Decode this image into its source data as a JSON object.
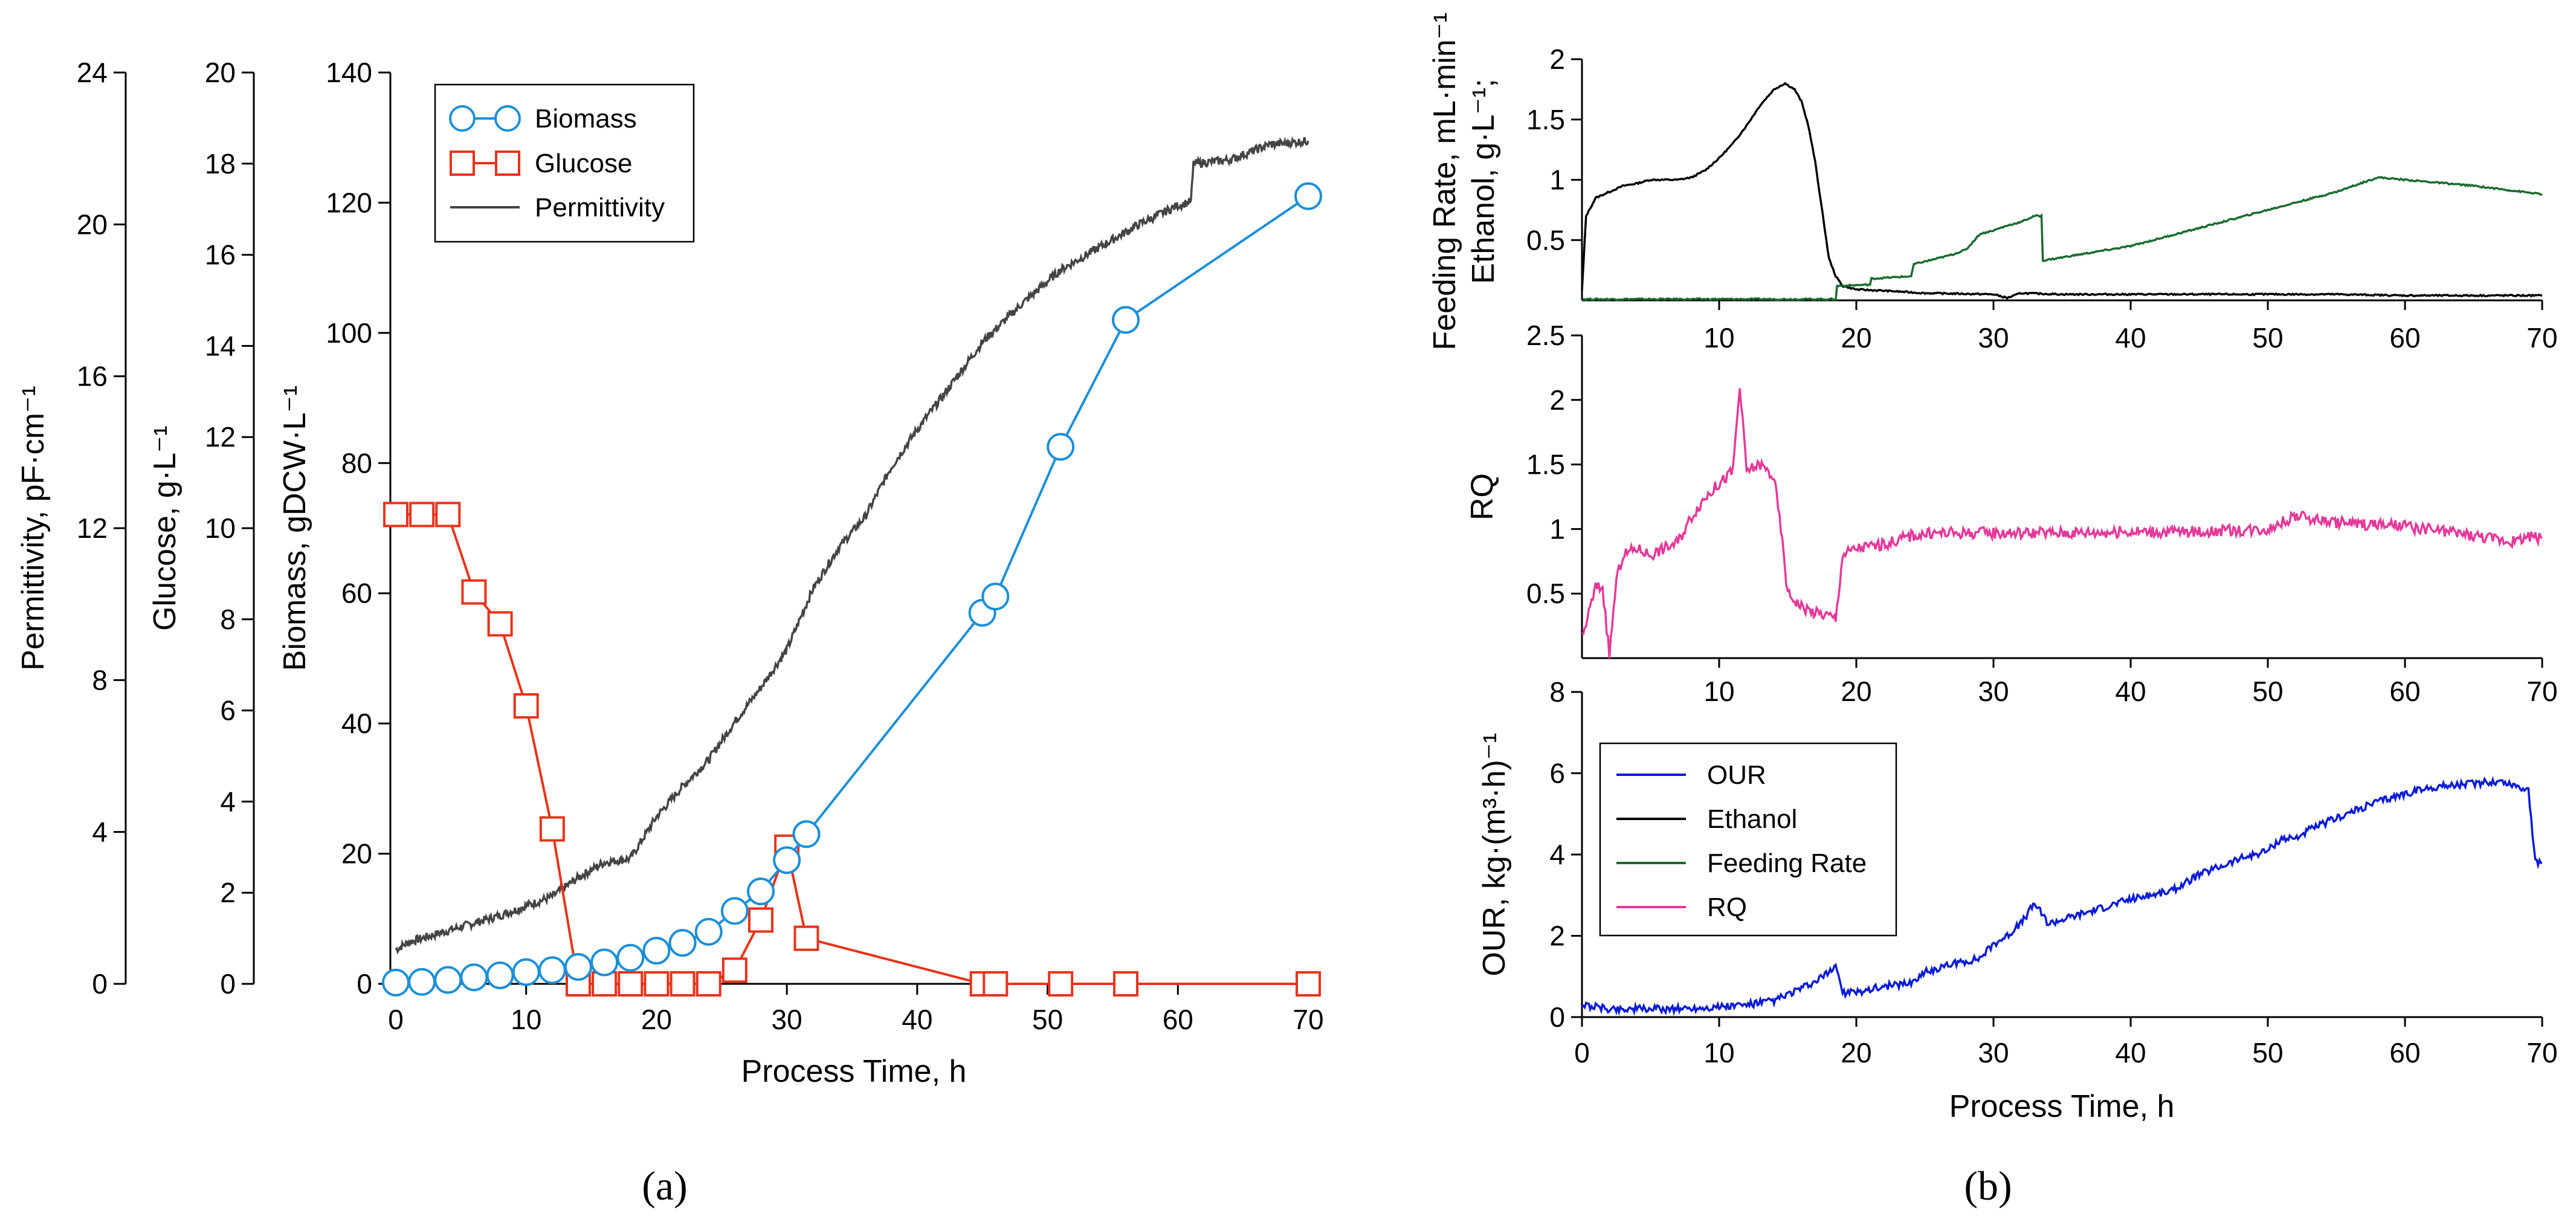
{
  "panels": {
    "a": {
      "label": "(a)"
    },
    "b": {
      "label": "(b)"
    }
  },
  "colors": {
    "biomass": "#1b8fd8",
    "glucose": "#e8331a",
    "permittivity": "#444444",
    "our": "#0a1bd6",
    "ethanol": "#000000",
    "feeding": "#1a6b2d",
    "rq": "#e5399a"
  },
  "chart_data": [
    {
      "type": "line",
      "panel": "a",
      "xlabel": "Process Time, h",
      "xlim": [
        0,
        70
      ],
      "x_ticks": [
        0,
        10,
        20,
        30,
        40,
        50,
        60,
        70
      ],
      "axes": [
        {
          "id": "biomass",
          "label": "Biomass, gDCW·L⁻¹",
          "ylim": [
            0,
            140
          ],
          "ticks": [
            0,
            20,
            40,
            60,
            80,
            100,
            120,
            140
          ]
        },
        {
          "id": "glucose",
          "label": "Glucose, g·L⁻¹",
          "ylim": [
            0,
            20
          ],
          "ticks": [
            0,
            2,
            4,
            6,
            8,
            10,
            12,
            14,
            16,
            18,
            20
          ]
        },
        {
          "id": "permittivity",
          "label": "Permittivity, pF·cm⁻¹",
          "ylim": [
            0,
            24
          ],
          "ticks": [
            0,
            4,
            8,
            12,
            16,
            20,
            24
          ]
        }
      ],
      "legend": {
        "position": "top-left",
        "entries": [
          "Biomass",
          "Glucose",
          "Permittivity"
        ]
      },
      "series": [
        {
          "name": "Biomass",
          "axis": "biomass",
          "marker": "circle",
          "x": [
            0,
            2,
            4,
            6,
            8,
            10,
            12,
            14,
            16,
            18,
            20,
            22,
            24,
            26,
            28,
            30,
            31.5,
            45,
            46,
            51,
            56,
            70
          ],
          "y": [
            0.2,
            0.3,
            0.6,
            1,
            1.3,
            1.8,
            2.1,
            2.6,
            3.3,
            4,
            5.1,
            6.3,
            8,
            11.2,
            14.2,
            19,
            23,
            57,
            59.5,
            82.5,
            102,
            121
          ]
        },
        {
          "name": "Glucose",
          "axis": "glucose",
          "marker": "square",
          "x": [
            0,
            2,
            4,
            6,
            8,
            10,
            12,
            14,
            16,
            18,
            20,
            22,
            24,
            26,
            28,
            30,
            31.5,
            45,
            46,
            51,
            56,
            70
          ],
          "y": [
            10.3,
            10.3,
            10.3,
            8.6,
            7.9,
            6.1,
            3.4,
            0,
            0,
            0,
            0,
            0,
            0,
            0.3,
            1.4,
            3.0,
            1.0,
            0,
            0,
            0,
            0,
            0
          ]
        },
        {
          "name": "Permittivity",
          "axis": "permittivity",
          "marker": "none",
          "x": [
            0,
            1,
            4,
            8,
            12,
            14,
            16,
            18,
            20,
            22,
            24,
            26,
            28,
            30,
            32,
            34,
            36,
            38,
            40,
            42,
            45,
            48,
            51,
            54,
            57,
            60,
            61,
            61.2,
            64,
            67,
            70
          ],
          "y": [
            0.9,
            1.1,
            1.4,
            1.8,
            2.3,
            2.8,
            3.2,
            3.3,
            4.4,
            5.2,
            5.9,
            6.9,
            7.8,
            8.8,
            10.4,
            11.5,
            12.3,
            13.6,
            14.6,
            15.5,
            16.9,
            17.9,
            18.8,
            19.4,
            20,
            20.5,
            20.6,
            21.6,
            21.7,
            22.1,
            22.2
          ]
        }
      ]
    },
    {
      "type": "line",
      "panel": "b",
      "subplot": "top",
      "ylabel_line1": "Feeding Rate, mL·min⁻¹",
      "ylabel_line2": "Ethanol, g·L⁻¹;",
      "xlim": [
        0,
        70
      ],
      "ylim": [
        0,
        2
      ],
      "x_ticks": [
        10,
        20,
        30,
        40,
        50,
        60,
        70
      ],
      "y_ticks": [
        0.5,
        1,
        1.5,
        2
      ],
      "series": [
        {
          "name": "Ethanol",
          "x": [
            0,
            0.3,
            1,
            2,
            3,
            4,
            5,
            6,
            7,
            8,
            9,
            10,
            11,
            12,
            13,
            14,
            14.8,
            15.5,
            16,
            16.5,
            17,
            17.5,
            18,
            18.5,
            19,
            20,
            22,
            25,
            30,
            31,
            32,
            35,
            40,
            45,
            50,
            55,
            60,
            65,
            70
          ],
          "y": [
            0.08,
            0.7,
            0.85,
            0.9,
            0.95,
            0.97,
            1.0,
            1.0,
            1.0,
            1.02,
            1.08,
            1.18,
            1.3,
            1.45,
            1.62,
            1.75,
            1.8,
            1.75,
            1.65,
            1.45,
            1.15,
            0.75,
            0.35,
            0.2,
            0.12,
            0.09,
            0.08,
            0.06,
            0.05,
            0.02,
            0.06,
            0.05,
            0.05,
            0.05,
            0.05,
            0.05,
            0.04,
            0.04,
            0.04
          ]
        },
        {
          "name": "Feeding Rate",
          "x": [
            0,
            18.5,
            18.6,
            21,
            21.1,
            24,
            24.2,
            26,
            27,
            28,
            29,
            30,
            31,
            32,
            33,
            33.5,
            33.6,
            40,
            45,
            50,
            55,
            58,
            60,
            65,
            70
          ],
          "y": [
            0.01,
            0.01,
            0.12,
            0.13,
            0.18,
            0.2,
            0.3,
            0.35,
            0.38,
            0.42,
            0.55,
            0.58,
            0.62,
            0.65,
            0.7,
            0.7,
            0.33,
            0.45,
            0.6,
            0.75,
            0.9,
            1.02,
            1.0,
            0.95,
            0.88
          ]
        }
      ]
    },
    {
      "type": "line",
      "panel": "b",
      "subplot": "middle",
      "ylabel": "RQ",
      "xlim": [
        0,
        70
      ],
      "ylim": [
        0,
        2.5
      ],
      "x_ticks": [
        10,
        20,
        30,
        40,
        50,
        60,
        70
      ],
      "y_ticks": [
        0.5,
        1,
        1.5,
        2,
        2.5
      ],
      "series": [
        {
          "name": "RQ",
          "x": [
            0,
            0.5,
            1,
            1.5,
            2,
            2.5,
            3,
            4,
            5,
            6,
            7,
            8,
            9,
            10,
            11,
            11.5,
            12,
            13,
            14,
            14.5,
            15,
            16,
            17,
            18,
            18.5,
            19,
            20,
            22,
            24,
            26,
            30,
            35,
            40,
            45,
            50,
            51,
            52,
            55,
            60,
            65,
            68,
            69,
            70
          ],
          "y": [
            0.15,
            0.35,
            0.55,
            0.55,
            0.02,
            0.6,
            0.8,
            0.85,
            0.8,
            0.85,
            0.9,
            1.1,
            1.25,
            1.35,
            1.45,
            2.1,
            1.45,
            1.5,
            1.4,
            1.0,
            0.5,
            0.4,
            0.35,
            0.33,
            0.3,
            0.8,
            0.85,
            0.88,
            0.95,
            0.97,
            0.97,
            0.97,
            0.98,
            0.98,
            1.0,
            1.05,
            1.1,
            1.05,
            1.02,
            0.95,
            0.9,
            0.95,
            0.93
          ]
        }
      ]
    },
    {
      "type": "line",
      "panel": "b",
      "subplot": "bottom",
      "xlabel": "Process Time, h",
      "ylabel": "OUR, kg·(m³·h)⁻¹",
      "xlim": [
        0,
        70
      ],
      "ylim": [
        0,
        8
      ],
      "x_ticks": [
        0,
        10,
        20,
        30,
        40,
        50,
        60,
        70
      ],
      "y_ticks": [
        0,
        2,
        4,
        6,
        8
      ],
      "legend": {
        "position": "top-left",
        "entries": [
          "OUR",
          "Ethanol",
          "Feeding Rate",
          "RQ"
        ]
      },
      "series": [
        {
          "name": "OUR",
          "x": [
            0,
            1,
            2,
            4,
            6,
            8,
            10,
            12,
            14,
            15,
            16,
            17,
            18,
            18.5,
            19,
            20,
            21,
            22,
            24,
            25,
            27,
            29,
            30,
            31,
            32,
            33,
            34,
            35,
            37,
            40,
            43,
            45,
            48,
            50,
            51,
            52,
            53,
            55,
            58,
            60,
            62,
            65,
            67,
            69,
            69.5,
            70
          ],
          "y": [
            0.3,
            0.25,
            0.2,
            0.2,
            0.2,
            0.22,
            0.25,
            0.3,
            0.4,
            0.55,
            0.7,
            0.85,
            1.1,
            1.3,
            0.6,
            0.6,
            0.7,
            0.75,
            0.85,
            1.1,
            1.3,
            1.45,
            1.8,
            2.0,
            2.3,
            2.8,
            2.3,
            2.4,
            2.6,
            2.9,
            3.1,
            3.5,
            3.9,
            4.1,
            4.4,
            4.4,
            4.6,
            4.9,
            5.3,
            5.5,
            5.65,
            5.75,
            5.8,
            5.6,
            3.8,
            3.8
          ]
        }
      ]
    }
  ]
}
